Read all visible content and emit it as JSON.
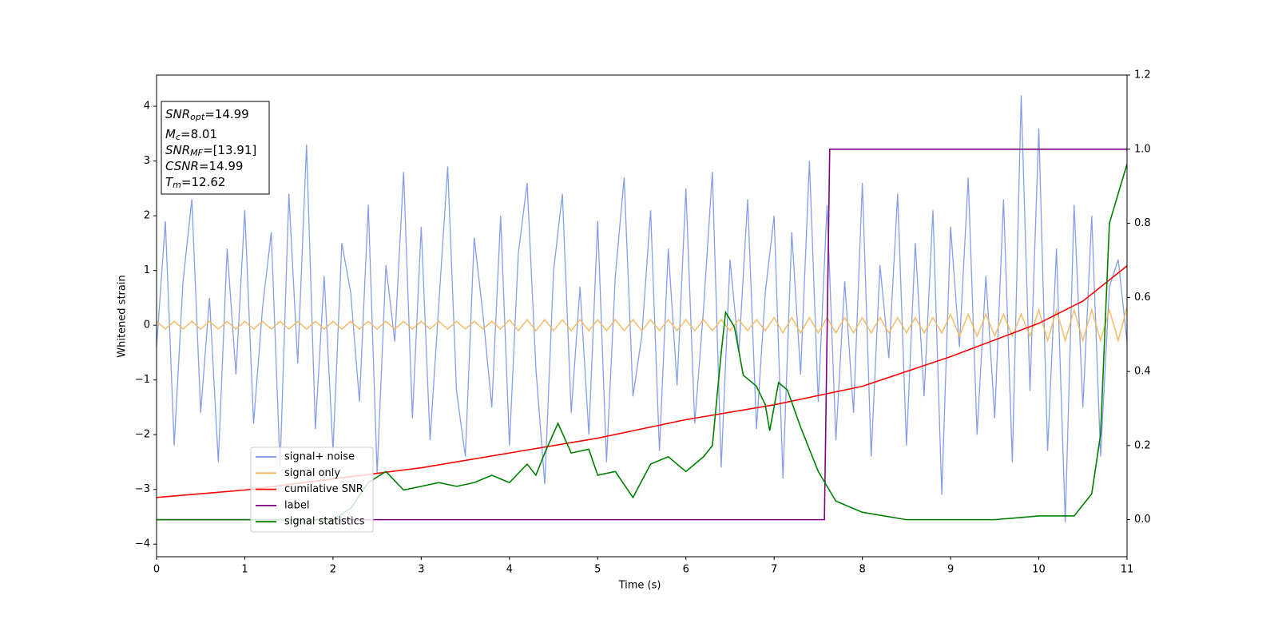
{
  "chart_data": {
    "type": "line",
    "xlabel": "Time (s)",
    "ylabel": "Whitened strain",
    "xlim": [
      0,
      11
    ],
    "ylim": [
      -4.23,
      4.57
    ],
    "y2lim": [
      -0.1,
      1.2
    ],
    "xticks": [
      0,
      1,
      2,
      3,
      4,
      5,
      6,
      7,
      8,
      9,
      10,
      11
    ],
    "yticks": [
      {
        "value": -4,
        "label": "−4"
      },
      {
        "value": -3,
        "label": "−3"
      },
      {
        "value": -2,
        "label": "−2"
      },
      {
        "value": -1,
        "label": "−1"
      },
      0,
      1,
      2,
      3,
      4
    ],
    "y2ticks": [
      {
        "value": 0,
        "label": "0.0"
      },
      0.2,
      0.4,
      0.6,
      0.8,
      {
        "value": 1,
        "label": "1.0"
      },
      1.2
    ],
    "x": [
      0,
      0.1,
      0.2,
      0.3,
      0.4,
      0.5,
      0.6,
      0.7,
      0.8,
      0.9,
      1,
      1.1,
      1.2,
      1.3,
      1.4,
      1.5,
      1.6,
      1.7,
      1.8,
      1.9,
      2,
      2.1,
      2.2,
      2.3,
      2.4,
      2.5,
      2.6,
      2.7,
      2.8,
      2.9,
      3,
      3.1,
      3.2,
      3.3,
      3.4,
      3.5,
      3.6,
      3.7,
      3.8,
      3.9,
      4,
      4.1,
      4.2,
      4.3,
      4.4,
      4.5,
      4.6,
      4.7,
      4.8,
      4.9,
      5,
      5.1,
      5.2,
      5.3,
      5.4,
      5.5,
      5.6,
      5.7,
      5.8,
      5.9,
      6,
      6.1,
      6.2,
      6.3,
      6.4,
      6.5,
      6.6,
      6.7,
      6.8,
      6.9,
      7,
      7.1,
      7.2,
      7.3,
      7.4,
      7.5,
      7.6,
      7.7,
      7.8,
      7.9,
      8,
      8.1,
      8.2,
      8.3,
      8.4,
      8.5,
      8.6,
      8.7,
      8.8,
      8.9,
      9,
      9.1,
      9.2,
      9.3,
      9.4,
      9.5,
      9.6,
      9.7,
      9.8,
      9.9,
      10,
      10.1,
      10.2,
      10.3,
      10.4,
      10.5,
      10.6,
      10.7,
      10.8,
      10.9,
      11
    ],
    "legend": "lower left",
    "series": [
      {
        "name": "signal+ noise",
        "color": "#7893e8",
        "values": [
          -0.4,
          1.9,
          -2.2,
          0.8,
          2.3,
          -1.6,
          0.5,
          -2.5,
          1.4,
          -0.9,
          2.1,
          -1.8,
          0.3,
          1.7,
          -2.6,
          2.4,
          -0.7,
          3.3,
          -1.9,
          0.9,
          -2.3,
          1.5,
          0.6,
          -1.4,
          2.2,
          -2.7,
          1.1,
          -0.3,
          2.8,
          -1.7,
          1.8,
          -2.1,
          0.4,
          2.9,
          -1.2,
          -2.4,
          1.6,
          0.2,
          -1.5,
          2.0,
          -2.2,
          1.3,
          2.6,
          -0.8,
          -2.9,
          1.0,
          2.4,
          -1.6,
          0.7,
          -2.0,
          1.9,
          -2.5,
          0.9,
          2.7,
          -1.3,
          -0.2,
          2.1,
          -2.3,
          1.4,
          -1.1,
          2.5,
          -1.8,
          0.3,
          2.8,
          -2.6,
          1.2,
          -0.5,
          2.3,
          -1.9,
          0.6,
          2.0,
          -2.8,
          1.7,
          -0.9,
          3.0,
          -1.4,
          2.2,
          -2.1,
          0.8,
          -1.6,
          2.6,
          -2.4,
          1.1,
          -0.6,
          2.4,
          -2.2,
          1.5,
          -1.3,
          2.1,
          -3.1,
          1.8,
          -0.4,
          2.7,
          -2.0,
          0.9,
          -1.7,
          2.3,
          -2.5,
          4.2,
          -1.2,
          3.6,
          -2.3,
          1.4,
          -3.6,
          2.2,
          -1.5,
          2.0,
          -2.4,
          0.7,
          1.2,
          -0.3
        ]
      },
      {
        "name": "signal only",
        "color": "#f3b95f",
        "values": [
          0.07,
          -0.07,
          0.07,
          -0.07,
          0.07,
          -0.07,
          0.07,
          -0.07,
          0.07,
          -0.07,
          0.07,
          -0.07,
          0.07,
          -0.07,
          0.07,
          -0.07,
          0.07,
          -0.07,
          0.07,
          -0.07,
          0.07,
          -0.07,
          0.07,
          -0.07,
          0.07,
          -0.07,
          0.07,
          -0.07,
          0.07,
          -0.07,
          0.07,
          -0.07,
          0.07,
          -0.07,
          0.07,
          -0.07,
          0.07,
          -0.07,
          0.07,
          -0.07,
          0.1,
          -0.1,
          0.1,
          -0.1,
          0.1,
          -0.1,
          0.1,
          -0.1,
          0.1,
          -0.1,
          0.1,
          -0.1,
          0.1,
          -0.1,
          0.1,
          -0.1,
          0.1,
          -0.1,
          0.1,
          -0.1,
          0.1,
          -0.1,
          0.1,
          -0.1,
          0.1,
          -0.1,
          0.1,
          -0.1,
          0.1,
          -0.1,
          0.14,
          -0.14,
          0.14,
          -0.14,
          0.14,
          -0.14,
          0.14,
          -0.14,
          0.14,
          -0.14,
          0.14,
          -0.14,
          0.14,
          -0.14,
          0.14,
          -0.14,
          0.14,
          -0.14,
          0.14,
          -0.14,
          0.2,
          -0.2,
          0.2,
          -0.2,
          0.2,
          -0.2,
          0.2,
          -0.2,
          0.2,
          -0.2,
          0.28,
          -0.28,
          0.28,
          -0.28,
          0.28,
          -0.28,
          0.28,
          -0.28,
          0.28,
          -0.28,
          0.33
        ]
      },
      {
        "name": "cumilative SNR",
        "color": "#ff0000",
        "axis": "y2",
        "x": [
          0,
          1,
          2,
          3,
          4,
          5,
          6,
          7,
          8,
          9,
          10,
          10.5,
          11
        ],
        "values": [
          0.06,
          0.08,
          0.11,
          0.14,
          0.18,
          0.22,
          0.27,
          0.31,
          0.36,
          0.44,
          0.53,
          0.59,
          0.685
        ]
      },
      {
        "name": "label",
        "color": "#800080",
        "axis": "y2",
        "x": [
          0,
          7.57,
          7.63,
          11
        ],
        "values": [
          0,
          0,
          1,
          1
        ]
      },
      {
        "name": "signal statistics",
        "color": "#008000",
        "axis": "y2",
        "x": [
          0,
          1,
          2,
          2.2,
          2.4,
          2.6,
          2.8,
          3,
          3.2,
          3.4,
          3.6,
          3.8,
          4,
          4.2,
          4.3,
          4.4,
          4.55,
          4.7,
          4.9,
          5,
          5.2,
          5.4,
          5.6,
          5.8,
          6,
          6.2,
          6.3,
          6.4,
          6.45,
          6.55,
          6.65,
          6.8,
          6.9,
          6.95,
          7.05,
          7.15,
          7.3,
          7.5,
          7.7,
          8,
          8.5,
          9,
          9.5,
          10,
          10.4,
          10.6,
          10.7,
          10.8,
          10.95,
          11
        ],
        "values": [
          0,
          0,
          0,
          0.03,
          0.1,
          0.13,
          0.08,
          0.09,
          0.1,
          0.09,
          0.1,
          0.12,
          0.1,
          0.15,
          0.12,
          0.18,
          0.26,
          0.18,
          0.19,
          0.12,
          0.13,
          0.06,
          0.15,
          0.17,
          0.13,
          0.17,
          0.2,
          0.45,
          0.56,
          0.52,
          0.39,
          0.36,
          0.31,
          0.24,
          0.37,
          0.35,
          0.25,
          0.13,
          0.05,
          0.02,
          0,
          0,
          0,
          0.01,
          0.01,
          0.07,
          0.23,
          0.8,
          0.92,
          0.96
        ]
      }
    ],
    "annotation": [
      {
        "symbol": "SNR",
        "sub": "opt",
        "text": "=14.99"
      },
      {
        "symbol": "M",
        "sub": "c",
        "text": "=8.01"
      },
      {
        "symbol": "SNR",
        "sub": "MF",
        "text": "=[13.91]"
      },
      {
        "symbol": "CSNR",
        "text": "=14.99"
      },
      {
        "symbol": "T",
        "sub": "m",
        "text": "=12.62"
      }
    ]
  }
}
